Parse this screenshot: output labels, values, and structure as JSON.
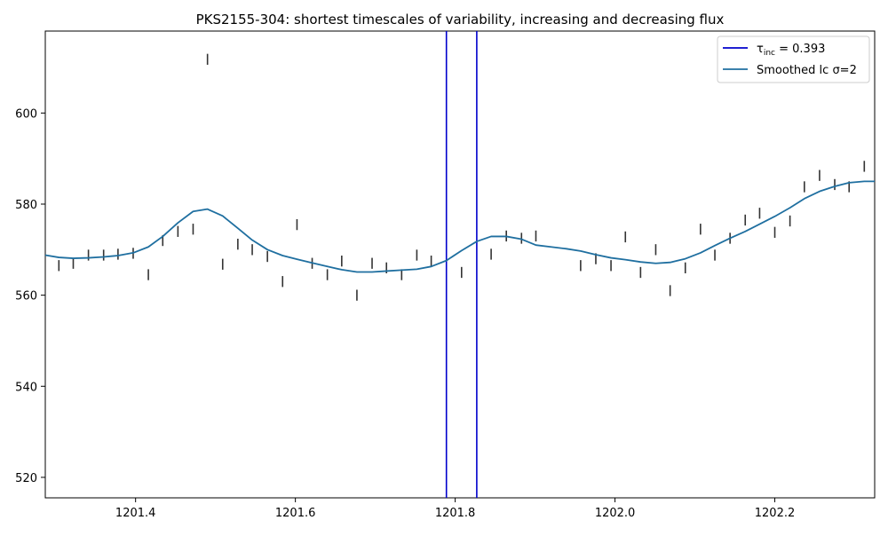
{
  "chart_data": {
    "type": "line",
    "title": "PKS2155-304: shortest timescales of variability, increasing and decreasing flux",
    "xlabel": "",
    "ylabel": "",
    "xlim": [
      1201.287,
      1202.325
    ],
    "ylim": [
      515.5,
      618.0
    ],
    "grid": false,
    "legend_position": "top-right",
    "x_ticks": [
      1201.4,
      1201.6,
      1201.8,
      1202.0,
      1202.2
    ],
    "x_tick_labels": [
      "1201.4",
      "1201.6",
      "1201.8",
      "1202.0",
      "1202.2"
    ],
    "y_ticks": [
      520,
      540,
      560,
      580,
      600
    ],
    "y_tick_labels": [
      "520",
      "540",
      "560",
      "580",
      "600"
    ],
    "legend": [
      {
        "label_main": "τ",
        "label_sub": "inc",
        "label_rest": " = 0.393",
        "color": "#0000cc",
        "kind": "vline"
      },
      {
        "label_main": "Smoothed lc ",
        "label_sub": "",
        "label_rest": "σ=2",
        "color": "#1f6fa0",
        "kind": "line"
      }
    ],
    "vlines": [
      {
        "x": 1201.789,
        "color": "#0000cc"
      },
      {
        "x": 1201.827,
        "color": "#0000cc"
      }
    ],
    "observations": {
      "name": "",
      "color": "#333333",
      "x": [
        1201.304,
        1201.322,
        1201.341,
        1201.36,
        1201.378,
        1201.397,
        1201.416,
        1201.434,
        1201.453,
        1201.472,
        1201.49,
        1201.509,
        1201.528,
        1201.546,
        1201.565,
        1201.584,
        1201.602,
        1201.621,
        1201.64,
        1201.658,
        1201.677,
        1201.696,
        1201.714,
        1201.733,
        1201.752,
        1201.77,
        1201.808,
        1201.845,
        1201.864,
        1201.883,
        1201.901,
        1201.957,
        1201.976,
        1201.995,
        1202.013,
        1202.032,
        1202.051,
        1202.069,
        1202.088,
        1202.107,
        1202.125,
        1202.144,
        1202.163,
        1202.181,
        1202.2,
        1202.219,
        1202.237,
        1202.256,
        1202.275,
        1202.293,
        1202.312
      ],
      "y": [
        566.5,
        567.0,
        568.8,
        568.8,
        569.0,
        569.2,
        564.5,
        572.0,
        574.0,
        574.5,
        611.8,
        566.8,
        571.2,
        570.0,
        568.5,
        563.0,
        575.5,
        567.0,
        564.5,
        567.5,
        560.0,
        567.0,
        566.0,
        564.5,
        568.8,
        567.5,
        565.0,
        569.0,
        573.0,
        572.5,
        573.0,
        566.5,
        568.0,
        566.5,
        572.8,
        565.0,
        570.0,
        561.0,
        566.0,
        574.5,
        568.8,
        572.5,
        576.5,
        578.0,
        573.8,
        576.3,
        583.8,
        586.3,
        584.3,
        583.8,
        588.3
      ],
      "err": 1.2
    },
    "series": [
      {
        "name": "Smoothed lc σ=2",
        "color": "#1f6fa0",
        "x": [
          1201.287,
          1201.304,
          1201.322,
          1201.341,
          1201.36,
          1201.378,
          1201.397,
          1201.416,
          1201.434,
          1201.453,
          1201.472,
          1201.49,
          1201.509,
          1201.528,
          1201.546,
          1201.565,
          1201.584,
          1201.602,
          1201.621,
          1201.64,
          1201.658,
          1201.677,
          1201.696,
          1201.714,
          1201.733,
          1201.752,
          1201.77,
          1201.789,
          1201.808,
          1201.827,
          1201.845,
          1201.864,
          1201.883,
          1201.901,
          1201.92,
          1201.939,
          1201.957,
          1201.976,
          1201.995,
          1202.013,
          1202.032,
          1202.051,
          1202.069,
          1202.088,
          1202.107,
          1202.125,
          1202.144,
          1202.163,
          1202.181,
          1202.2,
          1202.219,
          1202.237,
          1202.256,
          1202.275,
          1202.293,
          1202.312,
          1202.325
        ],
        "y": [
          568.8,
          568.3,
          568.1,
          568.2,
          568.4,
          568.7,
          569.3,
          570.6,
          572.9,
          575.9,
          578.4,
          578.9,
          577.4,
          574.7,
          572.1,
          570.0,
          568.7,
          567.9,
          567.1,
          566.3,
          565.6,
          565.1,
          565.1,
          565.3,
          565.5,
          565.7,
          566.3,
          567.6,
          569.8,
          571.8,
          572.9,
          572.9,
          572.3,
          571.0,
          570.6,
          570.2,
          569.7,
          568.9,
          568.2,
          567.8,
          567.3,
          567.0,
          567.2,
          568.0,
          569.3,
          570.9,
          572.5,
          574.0,
          575.6,
          577.3,
          579.2,
          581.2,
          582.8,
          583.9,
          584.7,
          585.0,
          585.0
        ]
      }
    ]
  }
}
